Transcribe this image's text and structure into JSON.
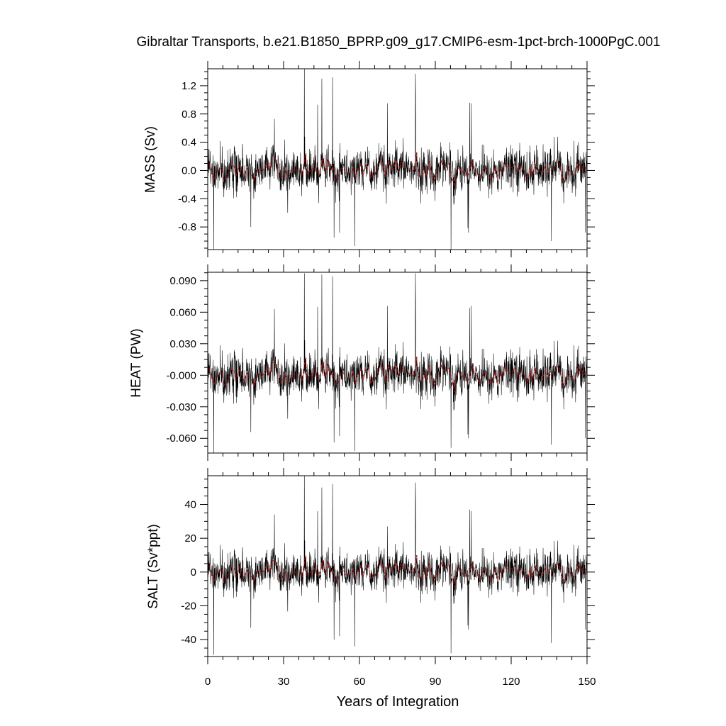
{
  "chart_data": {
    "type": "line",
    "title": "Gibraltar Transports, b.e21.B1850_BPRP.g09_g17.CMIP6-esm-1pct-brch-1000PgC.001",
    "xlabel": "Years of Integration",
    "xlim": [
      0,
      150
    ],
    "x_ticks": [
      0,
      30,
      60,
      90,
      120,
      150
    ],
    "x_tick_labels": [
      "0",
      "30",
      "60",
      "90",
      "120",
      "150"
    ],
    "series_colors": {
      "monthly": "#000000",
      "annual_mean": "#c00000"
    },
    "panels": [
      {
        "name": "mass",
        "ylabel": "MASS (Sv)",
        "ylim": [
          -1.12,
          1.44
        ],
        "y_ticks": [
          -0.8,
          -0.4,
          0.0,
          0.4,
          0.8,
          1.2
        ],
        "y_tick_labels": [
          "-0.8",
          "-0.4",
          "0.0",
          "0.4",
          "0.8",
          "1.2"
        ],
        "noise_sd": 0.16,
        "annual_amp": 0.07,
        "spikes": [
          [
            38.2,
            1.44
          ],
          [
            45.1,
            1.3
          ],
          [
            49.3,
            1.32
          ],
          [
            82.1,
            1.37
          ],
          [
            82.2,
            1.06
          ],
          [
            43.4,
            0.93
          ],
          [
            103.6,
            0.96
          ],
          [
            104.2,
            0.95
          ],
          [
            26.3,
            0.73
          ],
          [
            71.0,
            0.95
          ],
          [
            2.3,
            -1.12
          ],
          [
            58.1,
            -1.07
          ],
          [
            96.2,
            -1.12
          ],
          [
            17.0,
            -0.8
          ],
          [
            49.9,
            -0.95
          ],
          [
            52.1,
            -0.88
          ],
          [
            103.1,
            -0.88
          ],
          [
            135.8,
            -1.0
          ],
          [
            149.3,
            -0.88
          ]
        ]
      },
      {
        "name": "heat",
        "ylabel": "HEAT (PW)",
        "ylim": [
          -0.074,
          0.098
        ],
        "y_ticks": [
          -0.06,
          -0.03,
          0.0,
          0.03,
          0.06,
          0.09
        ],
        "y_tick_labels": [
          "-0.060",
          "-0.030",
          "-0.000",
          "0.030",
          "0.060",
          "0.090"
        ],
        "noise_sd": 0.011,
        "annual_amp": 0.005,
        "spikes": [
          [
            38.2,
            0.097
          ],
          [
            45.1,
            0.096
          ],
          [
            49.3,
            0.094
          ],
          [
            82.1,
            0.097
          ],
          [
            82.2,
            0.07
          ],
          [
            43.4,
            0.065
          ],
          [
            103.6,
            0.064
          ],
          [
            104.2,
            0.066
          ],
          [
            26.3,
            0.063
          ],
          [
            71.0,
            0.066
          ],
          [
            2.3,
            -0.074
          ],
          [
            58.1,
            -0.072
          ],
          [
            96.2,
            -0.069
          ],
          [
            17.0,
            -0.054
          ],
          [
            49.9,
            -0.064
          ],
          [
            52.1,
            -0.058
          ],
          [
            103.1,
            -0.06
          ],
          [
            135.8,
            -0.066
          ],
          [
            149.3,
            -0.06
          ]
        ]
      },
      {
        "name": "salt",
        "ylabel": "SALT (Sv*ppt)",
        "ylim": [
          -50,
          57
        ],
        "y_ticks": [
          -40,
          -20,
          0,
          20,
          40
        ],
        "y_tick_labels": [
          "-40",
          "-20",
          "0",
          "20",
          "40"
        ],
        "noise_sd": 6.2,
        "annual_amp": 2.8,
        "spikes": [
          [
            38.2,
            57
          ],
          [
            45.1,
            50
          ],
          [
            49.3,
            52
          ],
          [
            82.1,
            53
          ],
          [
            82.2,
            42
          ],
          [
            43.4,
            36
          ],
          [
            103.6,
            37
          ],
          [
            104.2,
            36
          ],
          [
            26.3,
            34
          ],
          [
            71.0,
            27
          ],
          [
            2.3,
            -49
          ],
          [
            58.1,
            -44
          ],
          [
            96.2,
            -48
          ],
          [
            17.0,
            -33
          ],
          [
            49.9,
            -40
          ],
          [
            52.1,
            -38
          ],
          [
            103.1,
            -34
          ],
          [
            135.8,
            -42
          ],
          [
            149.3,
            -34
          ]
        ]
      }
    ]
  }
}
